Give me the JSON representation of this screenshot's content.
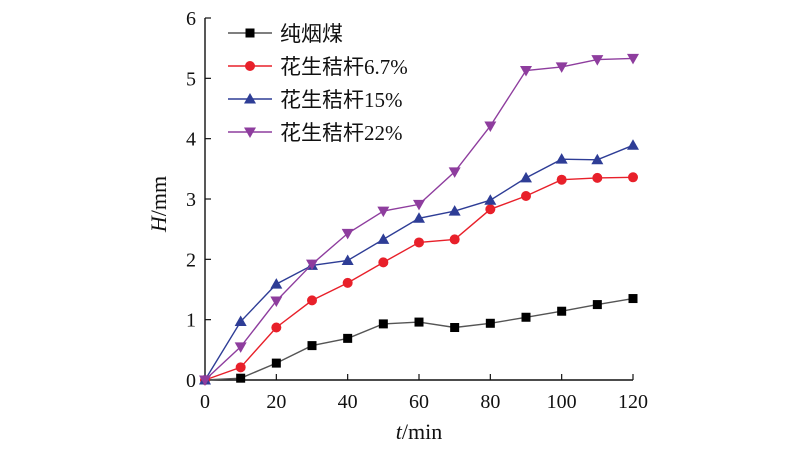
{
  "chart_data": {
    "type": "line",
    "xlabel": {
      "italic": "t",
      "rest": "/min"
    },
    "ylabel": {
      "italic": "H",
      "rest": "/mm"
    },
    "xlim": [
      0,
      120
    ],
    "ylim": [
      0,
      6
    ],
    "xticks": [
      0,
      20,
      40,
      60,
      80,
      100,
      120
    ],
    "yticks": [
      0,
      1,
      2,
      3,
      4,
      5,
      6
    ],
    "grid": false,
    "legend_position": "top-left",
    "x": [
      0,
      10,
      20,
      30,
      40,
      50,
      60,
      70,
      80,
      90,
      100,
      110,
      120
    ],
    "series": [
      {
        "name": "纯烟煤",
        "marker": "square",
        "color": "#000000",
        "line_color": "#555555",
        "values": [
          0,
          0.03,
          0.28,
          0.57,
          0.69,
          0.93,
          0.96,
          0.87,
          0.94,
          1.04,
          1.14,
          1.25,
          1.35
        ]
      },
      {
        "name": "花生秸杆6.7%",
        "marker": "circle",
        "color": "#e8202a",
        "line_color": "#e8202a",
        "values": [
          0,
          0.21,
          0.87,
          1.32,
          1.61,
          1.95,
          2.28,
          2.33,
          2.83,
          3.05,
          3.32,
          3.35,
          3.36
        ]
      },
      {
        "name": "花生秸杆15%",
        "marker": "triangle-up",
        "color": "#2e3d96",
        "line_color": "#2e3d96",
        "values": [
          0,
          0.97,
          1.59,
          1.9,
          1.98,
          2.33,
          2.68,
          2.8,
          2.98,
          3.35,
          3.66,
          3.65,
          3.89
        ]
      },
      {
        "name": "花生秸杆22%",
        "marker": "triangle-down",
        "color": "#8e3d9e",
        "line_color": "#8e3d9e",
        "values": [
          0,
          0.55,
          1.31,
          1.92,
          2.43,
          2.8,
          2.91,
          3.45,
          4.21,
          5.13,
          5.19,
          5.31,
          5.33
        ]
      }
    ]
  }
}
